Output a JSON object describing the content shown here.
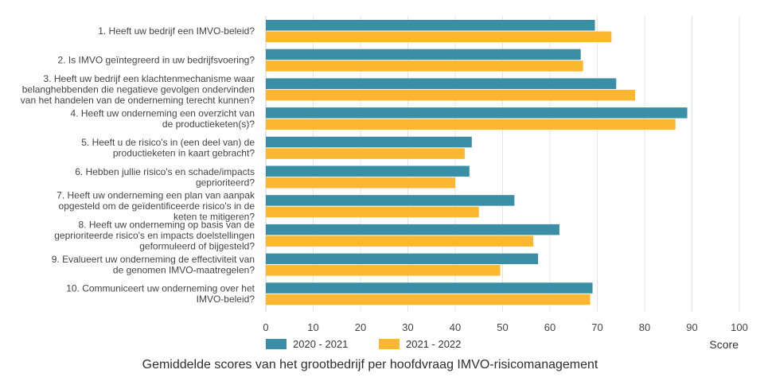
{
  "chart_data": {
    "type": "bar",
    "orientation": "horizontal",
    "categories": [
      [
        "1. Heeft uw bedrijf een IMVO-beleid?"
      ],
      [
        "2. Is IMVO geïntegreerd in uw bedrijfsvoering?"
      ],
      [
        "3. Heeft uw bedrijf een klachtenmechanisme waar",
        "belanghebbenden die negatieve gevolgen ondervinden",
        "van het handelen van de onderneming terecht kunnen?"
      ],
      [
        "4. Heeft uw onderneming een overzicht van",
        "de productieketen(s)?"
      ],
      [
        "5. Heeft u de risico's in (een deel van) de",
        "productieketen in kaart gebracht?"
      ],
      [
        "6. Hebben jullie risico's en schade/impacts",
        "geprioriteerd?"
      ],
      [
        "7. Heeft uw onderneming een plan van aanpak",
        "opgesteld om de geïdentificeerde risico's in de",
        "keten te mitigeren?"
      ],
      [
        "8. Heeft uw onderneming op basis van de",
        "geprioriteerde risico's en impacts doelstellingen",
        "geformuleerd of bijgesteld?"
      ],
      [
        "9. Evalueert uw onderneming de effectiviteit van",
        "de genomen IMVO-maatregelen?"
      ],
      [
        "10. Communiceert uw onderneming over het",
        "IMVO-beleid?"
      ]
    ],
    "series": [
      {
        "name": "2020 - 2021",
        "color": "#3a8fa6",
        "values": [
          69.5,
          66.5,
          74,
          89,
          43.5,
          43,
          52.5,
          62,
          57.5,
          69
        ]
      },
      {
        "name": "2021 - 2022",
        "color": "#fbb72f",
        "values": [
          73,
          67,
          78,
          86.5,
          42,
          40,
          45,
          56.5,
          49.5,
          68.5
        ]
      }
    ],
    "xlabel": "Score",
    "xlim": [
      0,
      100
    ],
    "xticks": [
      "0",
      "10",
      "20",
      "30",
      "40",
      "50",
      "60",
      "70",
      "80",
      "90",
      "100"
    ],
    "grid": true,
    "legend_position": "bottom-left",
    "caption": "Gemiddelde scores van het grootbedrijf per hoofdvraag IMVO-risicomanagement"
  }
}
